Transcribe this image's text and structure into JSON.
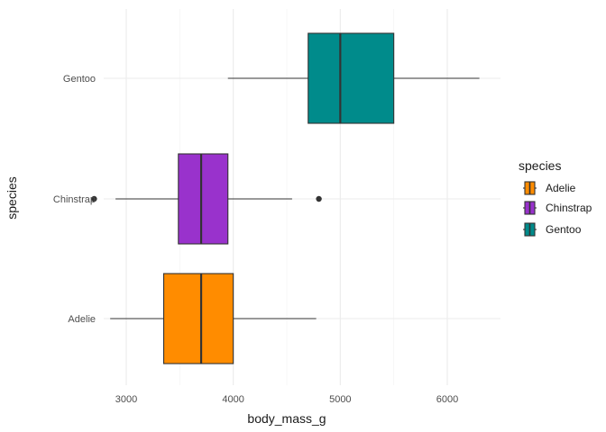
{
  "chart_data": {
    "type": "boxplot",
    "orientation": "horizontal",
    "xlabel": "body_mass_g",
    "ylabel": "species",
    "xlim": [
      2500,
      6400
    ],
    "x_ticks": [
      3000,
      4000,
      5000,
      6000
    ],
    "x_tick_labels": [
      "3000",
      "4000",
      "5000",
      "6000"
    ],
    "grid": true,
    "legend": {
      "title": "species",
      "position": "right",
      "entries": [
        "Adelie",
        "Chinstrap",
        "Gentoo"
      ]
    },
    "categories": [
      "Adelie",
      "Chinstrap",
      "Gentoo"
    ],
    "boxes": [
      {
        "category": "Adelie",
        "color": "#FF8C00",
        "whisker_low": 2850,
        "q1": 3350,
        "median": 3700,
        "q3": 4000,
        "whisker_high": 4775,
        "outliers": []
      },
      {
        "category": "Chinstrap",
        "color": "#9932CC",
        "whisker_low": 2900,
        "q1": 3487,
        "median": 3700,
        "q3": 3950,
        "whisker_high": 4550,
        "outliers": [
          2700,
          4800
        ]
      },
      {
        "category": "Gentoo",
        "color": "#008B8B",
        "whisker_low": 3950,
        "q1": 4700,
        "median": 5000,
        "q3": 5500,
        "whisker_high": 6300,
        "outliers": []
      }
    ]
  }
}
